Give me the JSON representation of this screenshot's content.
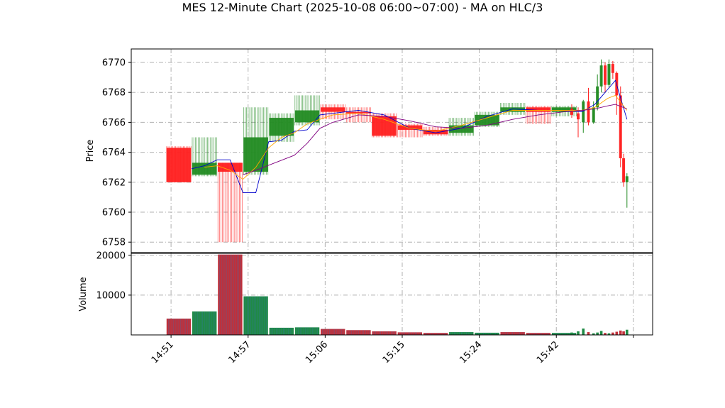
{
  "chart_data": [
    {
      "type": "candlestick",
      "panel": "price",
      "title": "MES 12-Minute Chart (2025-10-08 06:00~07:00) - MA on HLC/3",
      "xlabel": "",
      "ylabel": "Price",
      "ylim": [
        6757.3,
        6770.9
      ],
      "yticks": [
        6758,
        6760,
        6762,
        6764,
        6766,
        6768,
        6770
      ],
      "xticks": [
        "14:51",
        "14:57",
        "15:06",
        "15:15",
        "15:24",
        "15:42"
      ],
      "grid": true,
      "up_color": "#228B22",
      "down_color": "#FF2020",
      "candles": [
        {
          "x": 0.3,
          "o": 6764.3,
          "h": 6764.4,
          "l": 6762.0,
          "c": 6762.0
        },
        {
          "x": 1.3,
          "o": 6762.5,
          "h": 6765.0,
          "l": 6762.4,
          "c": 6763.3
        },
        {
          "x": 2.3,
          "o": 6763.3,
          "h": 6763.3,
          "l": 6758.0,
          "c": 6762.7
        },
        {
          "x": 3.3,
          "o": 6762.7,
          "h": 6767.0,
          "l": 6762.5,
          "c": 6765.0
        },
        {
          "x": 4.3,
          "o": 6765.1,
          "h": 6766.6,
          "l": 6764.7,
          "c": 6766.3
        },
        {
          "x": 5.3,
          "o": 6766.0,
          "h": 6767.8,
          "l": 6765.8,
          "c": 6766.8
        },
        {
          "x": 6.3,
          "o": 6767.0,
          "h": 6767.2,
          "l": 6766.2,
          "c": 6766.7
        },
        {
          "x": 7.3,
          "o": 6766.7,
          "h": 6767.0,
          "l": 6766.0,
          "c": 6766.6
        },
        {
          "x": 8.3,
          "o": 6766.4,
          "h": 6766.6,
          "l": 6765.0,
          "c": 6765.1
        },
        {
          "x": 9.3,
          "o": 6765.8,
          "h": 6765.9,
          "l": 6765.0,
          "c": 6765.5
        },
        {
          "x": 10.3,
          "o": 6765.5,
          "h": 6765.7,
          "l": 6765.1,
          "c": 6765.2
        },
        {
          "x": 11.3,
          "o": 6765.3,
          "h": 6766.3,
          "l": 6765.1,
          "c": 6765.8
        },
        {
          "x": 12.3,
          "o": 6765.8,
          "h": 6766.7,
          "l": 6765.7,
          "c": 6766.5
        },
        {
          "x": 13.3,
          "o": 6766.7,
          "h": 6767.3,
          "l": 6766.5,
          "c": 6767.0
        },
        {
          "x": 14.3,
          "o": 6767.0,
          "h": 6767.1,
          "l": 6765.9,
          "c": 6766.7
        },
        {
          "x": 15.3,
          "o": 6766.7,
          "h": 6767.1,
          "l": 6766.4,
          "c": 6767.0
        },
        {
          "x": 15.6,
          "o": 6766.9,
          "h": 6767.2,
          "l": 6766.3,
          "c": 6766.5
        },
        {
          "x": 15.85,
          "o": 6766.6,
          "h": 6767.0,
          "l": 6765.0,
          "c": 6766.2
        },
        {
          "x": 16.05,
          "o": 6766.0,
          "h": 6767.5,
          "l": 6765.3,
          "c": 6767.4
        },
        {
          "x": 16.25,
          "o": 6767.4,
          "h": 6768.3,
          "l": 6765.8,
          "c": 6766.0
        },
        {
          "x": 16.45,
          "o": 6766.0,
          "h": 6767.4,
          "l": 6765.9,
          "c": 6767.0
        },
        {
          "x": 16.6,
          "o": 6767.0,
          "h": 6769.2,
          "l": 6766.8,
          "c": 6768.4
        },
        {
          "x": 16.75,
          "o": 6768.4,
          "h": 6770.2,
          "l": 6768.0,
          "c": 6769.8
        },
        {
          "x": 16.9,
          "o": 6769.8,
          "h": 6770.0,
          "l": 6768.0,
          "c": 6768.5
        },
        {
          "x": 17.05,
          "o": 6768.5,
          "h": 6770.2,
          "l": 6768.3,
          "c": 6769.9
        },
        {
          "x": 17.2,
          "o": 6769.9,
          "h": 6770.1,
          "l": 6768.9,
          "c": 6769.3
        },
        {
          "x": 17.35,
          "o": 6769.3,
          "h": 6769.4,
          "l": 6766.5,
          "c": 6767.8
        },
        {
          "x": 17.5,
          "o": 6767.8,
          "h": 6768.4,
          "l": 6763.0,
          "c": 6763.6
        },
        {
          "x": 17.62,
          "o": 6763.6,
          "h": 6763.9,
          "l": 6761.7,
          "c": 6762.0
        },
        {
          "x": 17.75,
          "o": 6762.0,
          "h": 6762.6,
          "l": 6760.3,
          "c": 6762.4
        }
      ],
      "series": [
        {
          "color": "#0000CC",
          "x": [
            0.8,
            1.3,
            1.8,
            2.3,
            2.8,
            3.3,
            3.8,
            4.3,
            4.8,
            5.3,
            5.8,
            6.3,
            7.3,
            8.3,
            9.3,
            10.3,
            11.3,
            12.3,
            13.3,
            14.3,
            15.3,
            16.0,
            16.5,
            17.0,
            17.3,
            17.75
          ],
          "values": [
            6762.9,
            6763.1,
            6763.5,
            6763.5,
            6761.3,
            6761.3,
            6764.7,
            6764.8,
            6765.4,
            6765.5,
            6766.5,
            6766.6,
            6766.8,
            6766.5,
            6765.6,
            6765.3,
            6765.6,
            6766.4,
            6766.9,
            6766.8,
            6766.8,
            6766.7,
            6767.2,
            6768.2,
            6768.8,
            6766.2
          ]
        },
        {
          "color": "#FFA500",
          "x": [
            1.3,
            1.8,
            2.3,
            2.8,
            3.3,
            3.8,
            4.3,
            4.8,
            5.3,
            5.8,
            6.3,
            7.3,
            8.3,
            9.3,
            10.3,
            11.3,
            12.3,
            13.3,
            14.3,
            15.3,
            16.0,
            16.5,
            17.0,
            17.3,
            17.75
          ],
          "values": [
            6763.0,
            6763.1,
            6762.8,
            6762.2,
            6763.0,
            6764.3,
            6765.0,
            6765.3,
            6765.9,
            6766.2,
            6766.5,
            6766.6,
            6766.2,
            6765.6,
            6765.4,
            6765.8,
            6766.3,
            6766.8,
            6766.8,
            6766.8,
            6766.8,
            6767.0,
            6767.6,
            6767.8,
            6766.8
          ]
        },
        {
          "color": "#800080",
          "x": [
            2.8,
            3.3,
            4.8,
            5.3,
            5.8,
            6.3,
            7.3,
            8.3,
            9.3,
            10.3,
            11.3,
            12.3,
            13.3,
            14.3,
            15.3,
            16.0,
            16.5,
            17.0,
            17.3,
            17.75
          ],
          "values": [
            6762.5,
            6762.8,
            6763.8,
            6764.6,
            6765.6,
            6766.0,
            6766.5,
            6766.4,
            6766.1,
            6765.7,
            6765.6,
            6765.8,
            6766.2,
            6766.5,
            6766.7,
            6766.8,
            6766.9,
            6767.1,
            6767.2,
            6766.9
          ]
        }
      ]
    },
    {
      "type": "bar",
      "panel": "volume",
      "ylabel": "Volume",
      "ylim": [
        0,
        20500
      ],
      "yticks": [
        10000,
        20000
      ],
      "grid": true,
      "bars": [
        {
          "x": 0.3,
          "v": 4100,
          "w": 1.0,
          "color": "#C0303A"
        },
        {
          "x": 1.3,
          "v": 5900,
          "w": 1.0,
          "color": "#1F8A45"
        },
        {
          "x": 2.3,
          "v": 20200,
          "w": 1.0,
          "color": "#C0303A"
        },
        {
          "x": 3.3,
          "v": 9700,
          "w": 1.0,
          "color": "#1F8A45"
        },
        {
          "x": 4.3,
          "v": 1800,
          "w": 1.0,
          "color": "#1F8A45"
        },
        {
          "x": 5.3,
          "v": 1900,
          "w": 1.0,
          "color": "#1F8A45"
        },
        {
          "x": 6.3,
          "v": 1500,
          "w": 1.0,
          "color": "#C0303A"
        },
        {
          "x": 7.3,
          "v": 1200,
          "w": 1.0,
          "color": "#C0303A"
        },
        {
          "x": 8.3,
          "v": 900,
          "w": 1.0,
          "color": "#C0303A"
        },
        {
          "x": 9.3,
          "v": 650,
          "w": 1.0,
          "color": "#C0303A"
        },
        {
          "x": 10.3,
          "v": 500,
          "w": 1.0,
          "color": "#C0303A"
        },
        {
          "x": 11.3,
          "v": 700,
          "w": 1.0,
          "color": "#1F8A45"
        },
        {
          "x": 12.3,
          "v": 550,
          "w": 1.0,
          "color": "#1F8A45"
        },
        {
          "x": 13.3,
          "v": 700,
          "w": 1.0,
          "color": "#C0303A"
        },
        {
          "x": 14.3,
          "v": 500,
          "w": 1.0,
          "color": "#C0303A"
        },
        {
          "x": 15.3,
          "v": 500,
          "w": 1.0,
          "color": "#1F8A45"
        },
        {
          "x": 15.6,
          "v": 600,
          "w": 0.12,
          "color": "#1F8A45"
        },
        {
          "x": 15.85,
          "v": 900,
          "w": 0.12,
          "color": "#1F8A45"
        },
        {
          "x": 16.05,
          "v": 1600,
          "w": 0.12,
          "color": "#1F8A45"
        },
        {
          "x": 16.25,
          "v": 700,
          "w": 0.12,
          "color": "#C0303A"
        },
        {
          "x": 16.45,
          "v": 400,
          "w": 0.12,
          "color": "#1F8A45"
        },
        {
          "x": 16.6,
          "v": 600,
          "w": 0.12,
          "color": "#1F8A45"
        },
        {
          "x": 16.75,
          "v": 1000,
          "w": 0.12,
          "color": "#1F8A45"
        },
        {
          "x": 16.9,
          "v": 500,
          "w": 0.12,
          "color": "#C0303A"
        },
        {
          "x": 17.05,
          "v": 400,
          "w": 0.12,
          "color": "#1F8A45"
        },
        {
          "x": 17.2,
          "v": 600,
          "w": 0.12,
          "color": "#C0303A"
        },
        {
          "x": 17.35,
          "v": 800,
          "w": 0.12,
          "color": "#C0303A"
        },
        {
          "x": 17.5,
          "v": 1100,
          "w": 0.12,
          "color": "#C0303A"
        },
        {
          "x": 17.62,
          "v": 900,
          "w": 0.12,
          "color": "#C0303A"
        },
        {
          "x": 17.75,
          "v": 1300,
          "w": 0.12,
          "color": "#1F8A45"
        }
      ]
    }
  ]
}
